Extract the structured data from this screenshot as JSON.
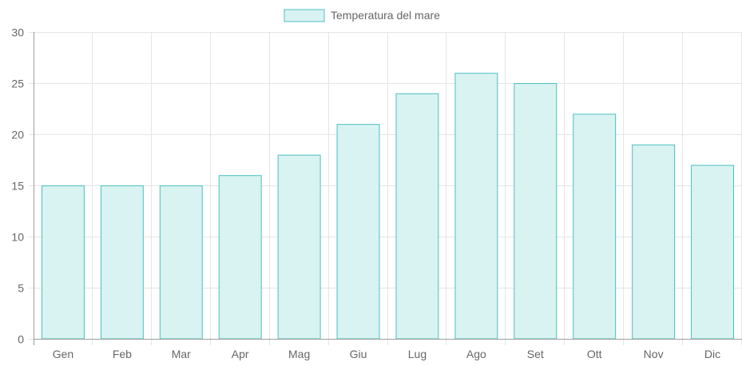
{
  "chart_data": {
    "type": "bar",
    "categories": [
      "Gen",
      "Feb",
      "Mar",
      "Apr",
      "Mag",
      "Giu",
      "Lug",
      "Ago",
      "Set",
      "Ott",
      "Nov",
      "Dic"
    ],
    "series": [
      {
        "name": "Temperatura del mare",
        "values": [
          15,
          15,
          15,
          16,
          18,
          21,
          24,
          26,
          25,
          22,
          19,
          17
        ],
        "fill_color": "#d9f2f2",
        "border_color": "#4bc0c0"
      }
    ],
    "ylim": [
      0,
      30
    ],
    "y_ticks": [
      0,
      5,
      10,
      15,
      20,
      25,
      30
    ],
    "grid": true,
    "legend_position": "top-center",
    "grid_color": "#e5e5e5",
    "axis_color": "#9e9e9e"
  }
}
